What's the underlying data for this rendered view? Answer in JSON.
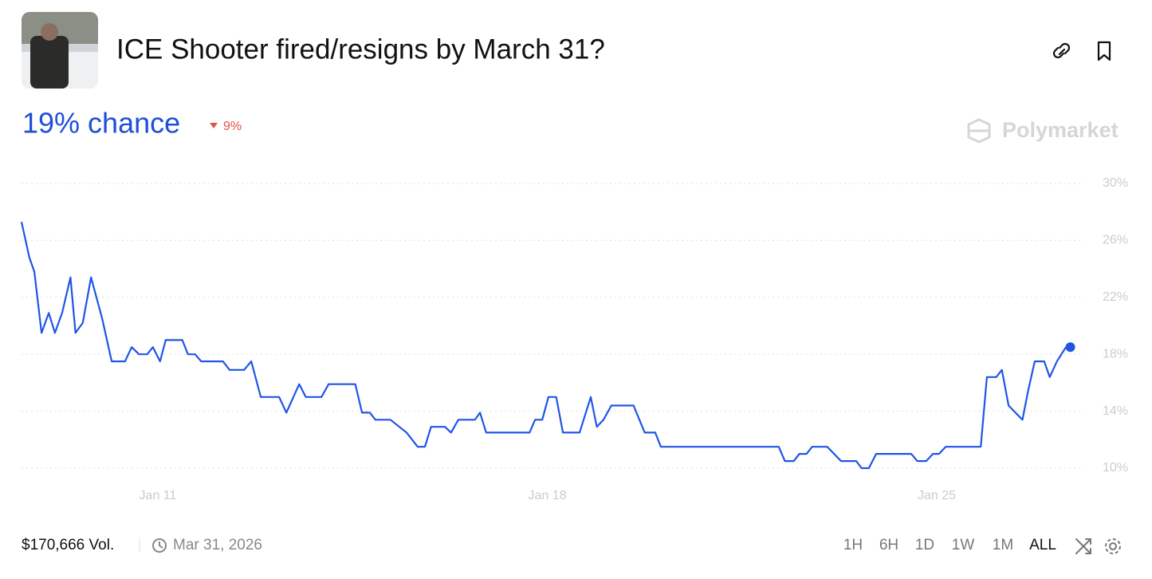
{
  "header": {
    "title": "ICE Shooter fired/resigns by March 31?"
  },
  "probability": "19% chance",
  "change": "9%",
  "brand": "Polymarket",
  "footer": {
    "volume": "$170,666 Vol.",
    "end_date": "Mar 31, 2026",
    "ranges": [
      "1H",
      "6H",
      "1D",
      "1W",
      "1M",
      "ALL"
    ]
  },
  "chart_data": {
    "type": "line",
    "color": "#1f55e6",
    "grid": true,
    "xlim": [
      8.55,
      27.65
    ],
    "ylim": [
      10,
      30
    ],
    "xticks": [
      {
        "value": 11,
        "label": "Jan 11"
      },
      {
        "value": 18,
        "label": "Jan 18"
      },
      {
        "value": 25,
        "label": "Jan 25"
      }
    ],
    "yticks": [
      {
        "value": 10,
        "label": "10%"
      },
      {
        "value": 14,
        "label": "14%"
      },
      {
        "value": 18,
        "label": "18%"
      },
      {
        "value": 22,
        "label": "22%"
      },
      {
        "value": 26,
        "label": "26%"
      },
      {
        "value": 30,
        "label": "30%"
      }
    ],
    "x": [
      8.55,
      8.69,
      8.78,
      8.91,
      9.04,
      9.15,
      9.28,
      9.43,
      9.52,
      9.65,
      9.8,
      10.0,
      10.17,
      10.41,
      10.53,
      10.66,
      10.81,
      10.91,
      11.04,
      11.14,
      11.44,
      11.54,
      11.67,
      11.78,
      12.17,
      12.29,
      12.55,
      12.68,
      12.85,
      13.18,
      13.31,
      13.54,
      13.66,
      13.94,
      14.07,
      14.55,
      14.67,
      14.81,
      14.91,
      15.18,
      15.47,
      15.67,
      15.8,
      15.91,
      16.16,
      16.27,
      16.4,
      16.7,
      16.79,
      16.9,
      17.68,
      17.78,
      17.91,
      18.02,
      18.16,
      18.28,
      18.58,
      18.78,
      18.89,
      19.01,
      19.15,
      19.55,
      19.75,
      19.94,
      20.04,
      22.16,
      22.27,
      22.43,
      22.53,
      22.66,
      22.76,
      23.03,
      23.28,
      23.55,
      23.65,
      23.78,
      23.91,
      24.54,
      24.65,
      24.81,
      24.93,
      25.04,
      25.16,
      25.79,
      25.9,
      26.07,
      26.17,
      26.29,
      26.54,
      26.64,
      26.76,
      26.93,
      27.03,
      27.16,
      27.32,
      27.4
    ],
    "values": [
      27.3,
      24.8,
      23.8,
      19.5,
      20.9,
      19.5,
      20.9,
      23.4,
      19.5,
      20.2,
      23.4,
      20.5,
      17.5,
      17.5,
      18.5,
      18.0,
      18.0,
      18.5,
      17.5,
      19.0,
      19.0,
      18.0,
      18.0,
      17.5,
      17.5,
      16.9,
      16.9,
      17.5,
      15.0,
      15.0,
      13.9,
      15.9,
      15.0,
      15.0,
      15.9,
      15.9,
      13.9,
      13.9,
      13.4,
      13.4,
      12.5,
      11.5,
      11.5,
      12.9,
      12.9,
      12.5,
      13.4,
      13.4,
      13.9,
      12.5,
      12.5,
      13.4,
      13.4,
      15.0,
      15.0,
      12.5,
      12.5,
      15.0,
      12.9,
      13.4,
      14.4,
      14.4,
      12.5,
      12.5,
      11.5,
      11.5,
      10.5,
      10.5,
      11.0,
      11.0,
      11.5,
      11.5,
      10.5,
      10.5,
      10.0,
      10.0,
      11.0,
      11.0,
      10.5,
      10.5,
      11.0,
      11.0,
      11.5,
      11.5,
      16.4,
      16.4,
      16.9,
      14.4,
      13.4,
      15.4,
      17.5,
      17.5,
      16.4,
      17.5,
      18.5,
      18.5
    ]
  }
}
